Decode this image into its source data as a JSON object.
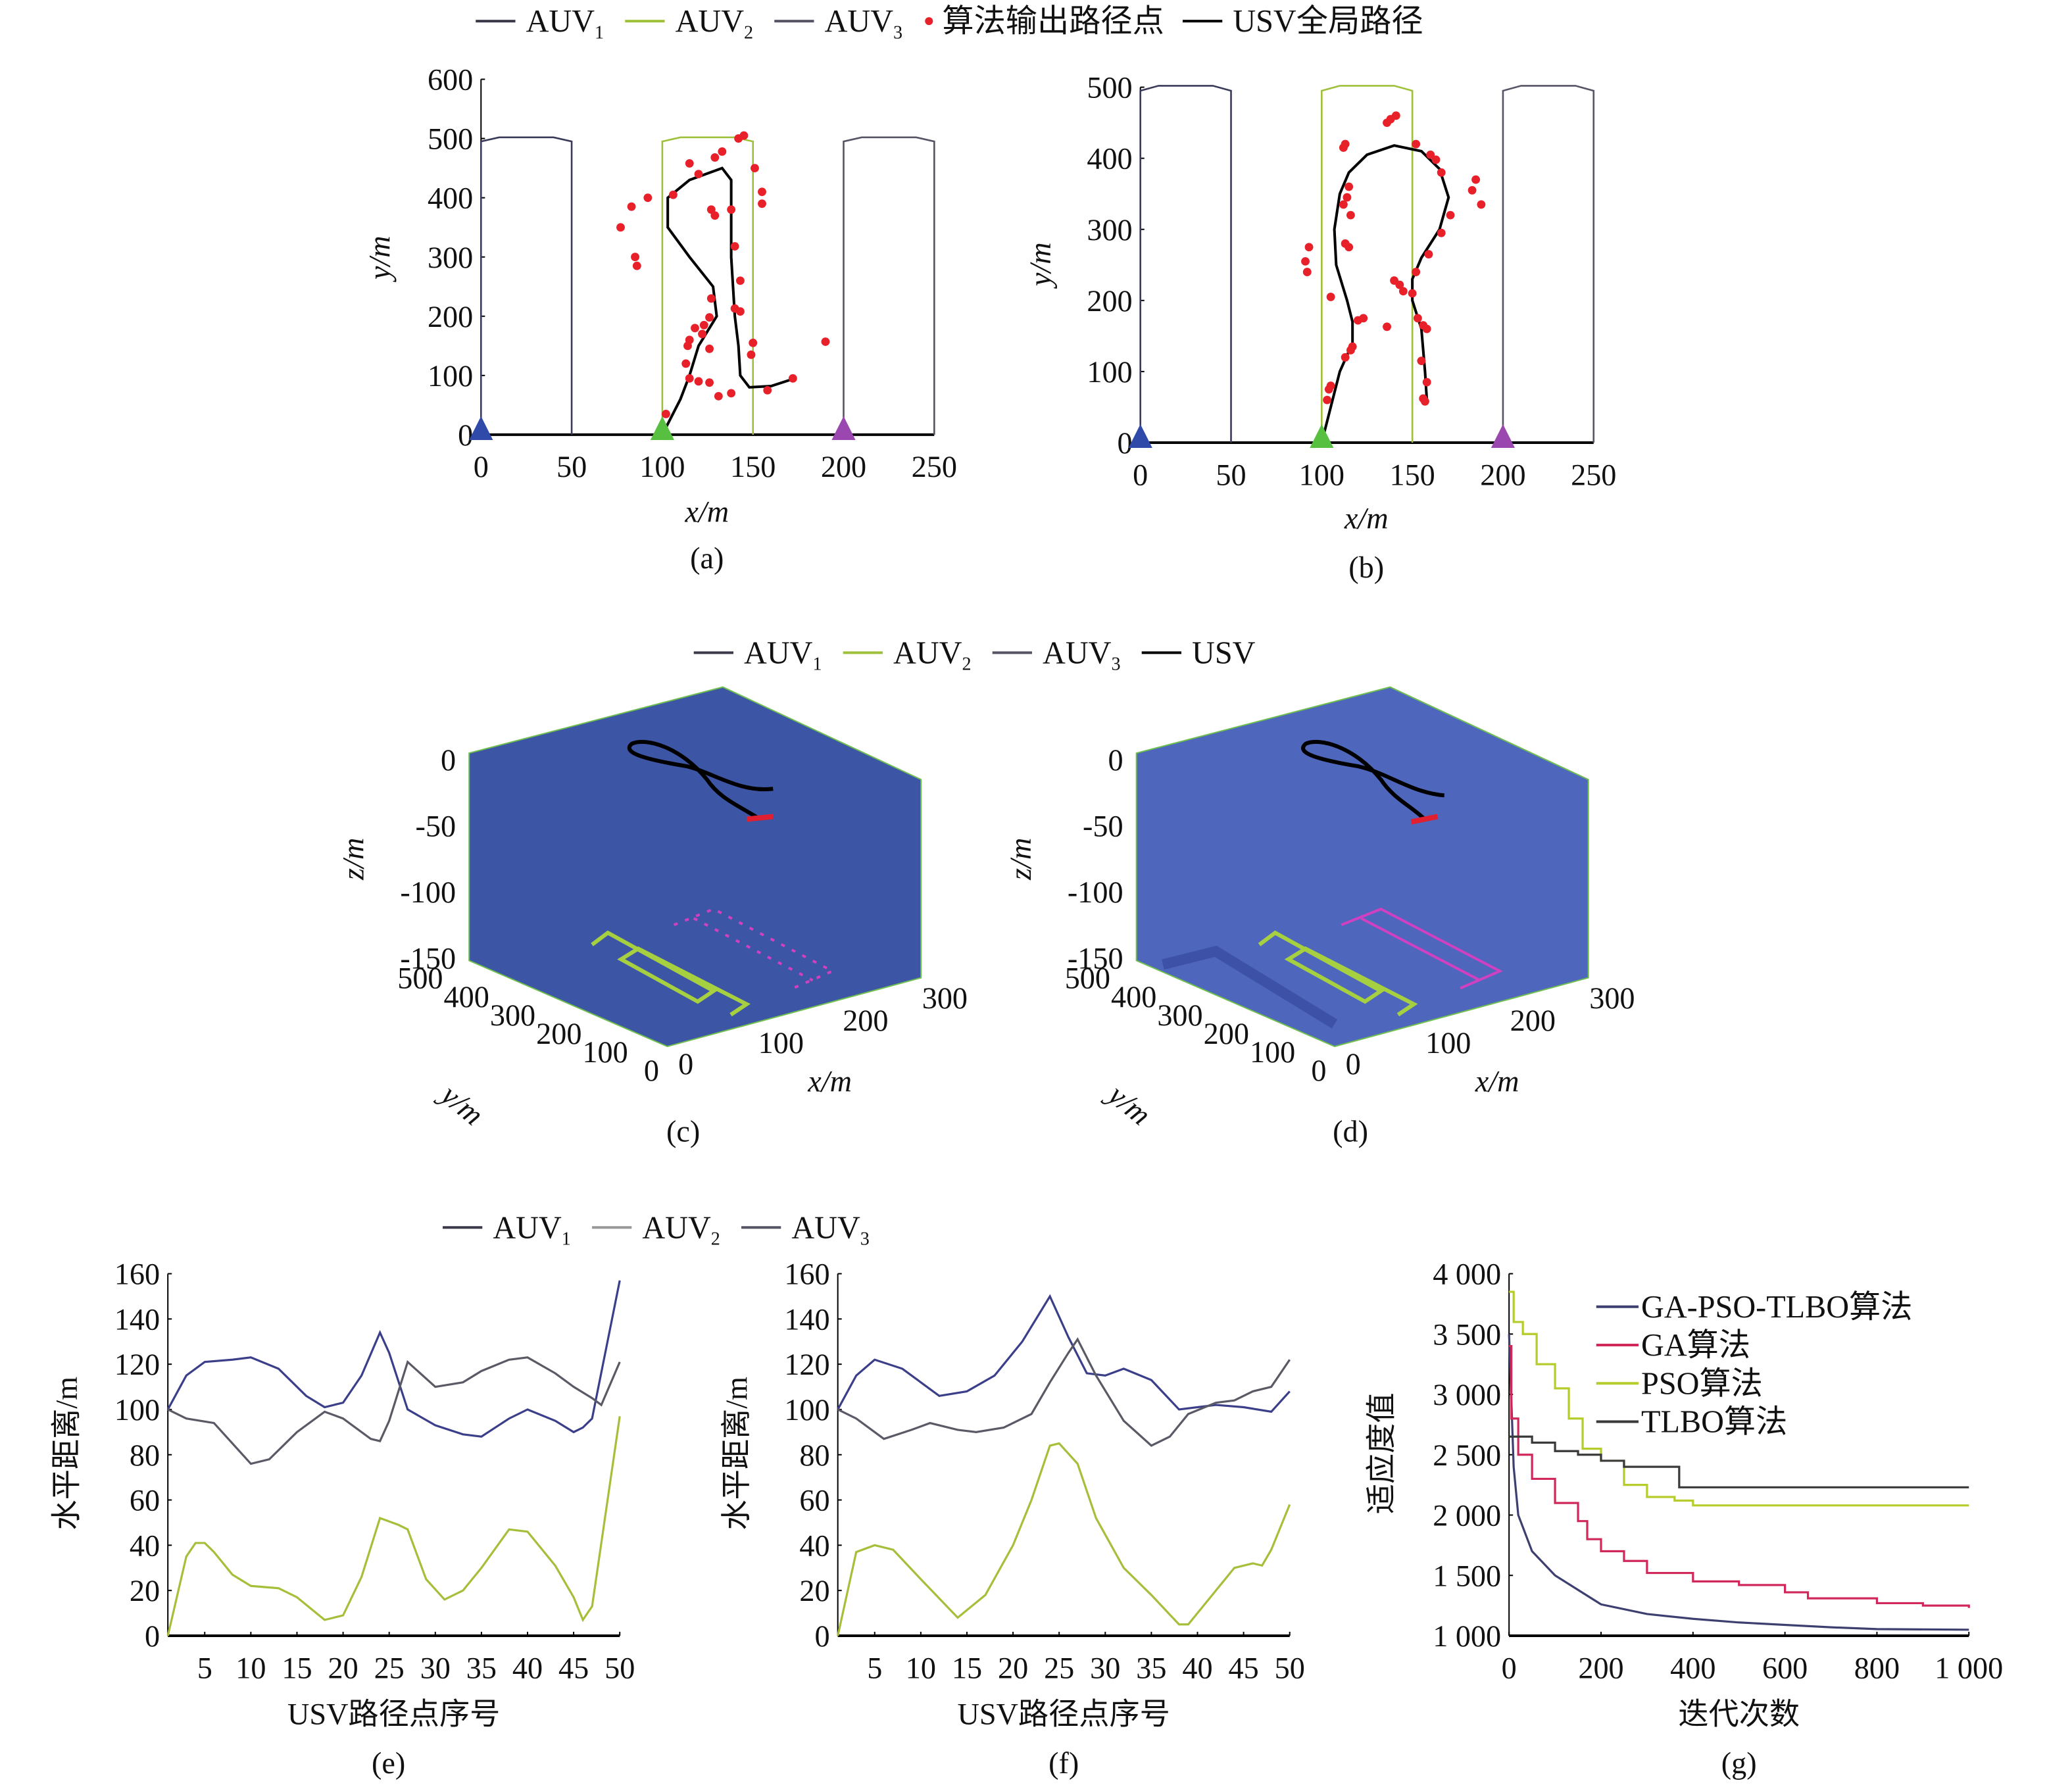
{
  "legends": {
    "top": [
      {
        "base": "AUV",
        "sub": "1",
        "color": "#3a3a4a",
        "kind": "line"
      },
      {
        "base": "AUV",
        "sub": "2",
        "color": "#9fc03a",
        "kind": "line"
      },
      {
        "base": "AUV",
        "sub": "3",
        "color": "#555566",
        "kind": "line"
      },
      {
        "base": "算法输出路径点",
        "sub": "",
        "color": "#e8202a",
        "kind": "dot"
      },
      {
        "base": "USV全局路径",
        "sub": "",
        "color": "#000000",
        "kind": "line"
      }
    ],
    "middle": [
      {
        "base": "AUV",
        "sub": "1",
        "color": "#3a3a4a",
        "kind": "line"
      },
      {
        "base": "AUV",
        "sub": "2",
        "color": "#9fc03a",
        "kind": "line"
      },
      {
        "base": "AUV",
        "sub": "3",
        "color": "#555566",
        "kind": "line"
      },
      {
        "base": "USV",
        "sub": "",
        "color": "#000000",
        "kind": "line"
      }
    ],
    "bottom": [
      {
        "base": "AUV",
        "sub": "1",
        "color": "#3a3a4a",
        "kind": "line"
      },
      {
        "base": "AUV",
        "sub": "2",
        "color": "#999999",
        "kind": "line"
      },
      {
        "base": "AUV",
        "sub": "3",
        "color": "#555566",
        "kind": "line"
      }
    ]
  },
  "chart_data": [
    {
      "id": "a",
      "type": "line",
      "caption": "(a)",
      "xlabel": "x/m",
      "ylabel": "y/m",
      "xlim": [
        0,
        250
      ],
      "ylim": [
        0,
        600
      ],
      "xticks": [
        0,
        50,
        100,
        150,
        200,
        250
      ],
      "yticks": [
        0,
        100,
        200,
        300,
        400,
        500,
        600
      ],
      "lanes": [
        {
          "name": "AUV1",
          "color": "#3a3a5a",
          "x": [
            0,
            0,
            10,
            40,
            50,
            50
          ],
          "y": [
            0,
            495,
            502,
            502,
            495,
            0
          ]
        },
        {
          "name": "AUV2",
          "color": "#9fc03a",
          "x": [
            100,
            100,
            110,
            140,
            150,
            150
          ],
          "y": [
            0,
            495,
            502,
            502,
            495,
            0
          ]
        },
        {
          "name": "AUV3",
          "color": "#555566",
          "x": [
            200,
            200,
            210,
            240,
            250,
            250
          ],
          "y": [
            0,
            495,
            502,
            502,
            495,
            0
          ]
        }
      ],
      "starts": [
        {
          "x": 0,
          "color": "#2f4aa8"
        },
        {
          "x": 100,
          "color": "#57c040"
        },
        {
          "x": 200,
          "color": "#9a47b0"
        }
      ],
      "usv_path": {
        "x": [
          100,
          110,
          115,
          120,
          130,
          128,
          115,
          103,
          103,
          115,
          133,
          138,
          138,
          140,
          142,
          143,
          148,
          160,
          173
        ],
        "y": [
          0,
          60,
          100,
          150,
          200,
          250,
          300,
          350,
          400,
          430,
          450,
          430,
          300,
          200,
          150,
          100,
          80,
          82,
          95
        ]
      },
      "points": {
        "x": [
          77,
          83,
          92,
          85,
          86,
          106,
          115,
          120,
          129,
          133,
          142,
          145,
          151,
          155,
          155,
          138,
          127,
          129,
          140,
          143,
          140,
          143,
          127,
          126,
          123,
          118,
          122,
          115,
          114,
          126,
          150,
          149,
          113,
          115,
          120,
          126,
          131,
          138,
          158,
          172,
          190,
          102
        ],
        "y": [
          350,
          385,
          400,
          300,
          285,
          405,
          458,
          440,
          468,
          478,
          500,
          505,
          450,
          410,
          390,
          380,
          380,
          370,
          318,
          260,
          213,
          208,
          230,
          198,
          185,
          180,
          170,
          160,
          150,
          145,
          155,
          135,
          120,
          95,
          90,
          88,
          65,
          70,
          75,
          95,
          157,
          35
        ]
      }
    },
    {
      "id": "b",
      "type": "line",
      "caption": "(b)",
      "xlabel": "x/m",
      "ylabel": "y/m",
      "xlim": [
        0,
        250
      ],
      "ylim": [
        0,
        500
      ],
      "xticks": [
        0,
        50,
        100,
        150,
        200,
        250
      ],
      "yticks": [
        0,
        100,
        200,
        300,
        400,
        500
      ],
      "lanes": [
        {
          "name": "AUV1",
          "color": "#3a3a5a",
          "x": [
            0,
            0,
            10,
            40,
            50,
            50
          ],
          "y": [
            0,
            495,
            502,
            502,
            495,
            0
          ]
        },
        {
          "name": "AUV2",
          "color": "#9fc03a",
          "x": [
            100,
            100,
            110,
            140,
            150,
            150
          ],
          "y": [
            0,
            495,
            502,
            502,
            495,
            0
          ]
        },
        {
          "name": "AUV3",
          "color": "#555566",
          "x": [
            200,
            200,
            210,
            240,
            250,
            250
          ],
          "y": [
            0,
            495,
            502,
            502,
            495,
            0
          ]
        }
      ],
      "starts": [
        {
          "x": 0,
          "color": "#2f4aa8"
        },
        {
          "x": 100,
          "color": "#57c040"
        },
        {
          "x": 200,
          "color": "#9a47b0"
        }
      ],
      "usv_path": {
        "x": [
          100,
          105,
          110,
          117,
          117,
          114,
          108,
          107,
          110,
          115,
          125,
          140,
          155,
          165,
          170,
          165,
          155,
          150,
          150,
          155,
          157,
          158
        ],
        "y": [
          0,
          50,
          100,
          140,
          170,
          200,
          250,
          300,
          350,
          380,
          405,
          418,
          410,
          385,
          345,
          300,
          260,
          230,
          200,
          160,
          100,
          60
        ]
      },
      "points": {
        "x": [
          93,
          91,
          92,
          105,
          113,
          112,
          115,
          114,
          112,
          116,
          113,
          115,
          123,
          120,
          117,
          116,
          113,
          105,
          104,
          103,
          136,
          138,
          141,
          152,
          160,
          163,
          166,
          185,
          183,
          188,
          171,
          166,
          159,
          152,
          140,
          143,
          145,
          150,
          136,
          153,
          156,
          158,
          155,
          158,
          156,
          157
        ],
        "y": [
          275,
          255,
          240,
          205,
          420,
          415,
          360,
          345,
          335,
          320,
          280,
          275,
          175,
          172,
          135,
          130,
          120,
          80,
          75,
          60,
          450,
          455,
          460,
          420,
          405,
          398,
          380,
          370,
          355,
          335,
          320,
          295,
          265,
          240,
          228,
          222,
          213,
          210,
          163,
          175,
          165,
          160,
          115,
          85,
          62,
          58
        ]
      }
    },
    {
      "id": "c",
      "type": "3d",
      "caption": "(c)",
      "xlabel": "x/m",
      "ylabel": "y/m",
      "zlabel": "z/m",
      "xticks": [
        0,
        100,
        200,
        300
      ],
      "yticks": [
        500,
        400,
        300,
        200,
        100,
        0
      ],
      "zticks": [
        0,
        -50,
        -100,
        -150
      ]
    },
    {
      "id": "d",
      "type": "3d",
      "caption": "(d)",
      "xlabel": "x/m",
      "ylabel": "y/m",
      "zlabel": "z/m",
      "xticks": [
        0,
        100,
        200,
        300
      ],
      "yticks": [
        500,
        400,
        300,
        200,
        100,
        0
      ],
      "zticks": [
        0,
        -50,
        -100,
        -150
      ]
    },
    {
      "id": "e",
      "type": "line",
      "caption": "(e)",
      "xlabel": "USV路径点序号",
      "ylabel": "水平距离/m",
      "xlim": [
        1,
        50
      ],
      "ylim": [
        0,
        160
      ],
      "xticks": [
        5,
        10,
        15,
        20,
        25,
        30,
        35,
        40,
        45,
        50
      ],
      "yticks": [
        0,
        20,
        40,
        60,
        80,
        100,
        120,
        140,
        160
      ],
      "series": [
        {
          "name": "AUV1",
          "color": "#3b3f8a",
          "x": [
            1,
            3,
            5,
            8,
            10,
            13,
            16,
            18,
            20,
            22,
            24,
            25,
            27,
            30,
            33,
            35,
            38,
            40,
            43,
            45,
            46,
            47,
            50
          ],
          "y": [
            100,
            115,
            121,
            122,
            123,
            118,
            106,
            101,
            103,
            115,
            134,
            125,
            100,
            93,
            89,
            88,
            96,
            100,
            95,
            90,
            92,
            96,
            157
          ]
        },
        {
          "name": "AUV3",
          "color": "#5a5a66",
          "x": [
            1,
            3,
            6,
            8,
            10,
            12,
            15,
            18,
            20,
            23,
            24,
            25,
            27,
            30,
            33,
            35,
            38,
            40,
            43,
            45,
            47,
            48,
            50
          ],
          "y": [
            100,
            96,
            94,
            85,
            76,
            78,
            90,
            99,
            96,
            87,
            86,
            95,
            121,
            110,
            112,
            117,
            122,
            123,
            116,
            110,
            105,
            102,
            121
          ]
        },
        {
          "name": "AUV2",
          "color": "#a6bf3a",
          "x": [
            1,
            3,
            4,
            5,
            6,
            8,
            10,
            13,
            15,
            18,
            20,
            22,
            24,
            26,
            27,
            29,
            31,
            33,
            35,
            38,
            40,
            43,
            45,
            46,
            47,
            50
          ],
          "y": [
            0,
            35,
            41,
            41,
            37,
            27,
            22,
            21,
            17,
            7,
            9,
            26,
            52,
            49,
            47,
            25,
            16,
            20,
            30,
            47,
            46,
            31,
            17,
            7,
            13,
            97
          ]
        }
      ]
    },
    {
      "id": "f",
      "type": "line",
      "caption": "(f)",
      "xlabel": "USV路径点序号",
      "ylabel": "水平距离/m",
      "xlim": [
        1,
        50
      ],
      "ylim": [
        0,
        160
      ],
      "xticks": [
        5,
        10,
        15,
        20,
        25,
        30,
        35,
        40,
        45,
        50
      ],
      "yticks": [
        0,
        20,
        40,
        60,
        80,
        100,
        120,
        140,
        160
      ],
      "series": [
        {
          "name": "AUV1",
          "color": "#3b3f8a",
          "x": [
            1,
            3,
            5,
            8,
            12,
            15,
            18,
            21,
            24,
            26,
            28,
            30,
            32,
            35,
            38,
            40,
            42,
            45,
            48,
            50
          ],
          "y": [
            100,
            115,
            122,
            118,
            106,
            108,
            115,
            130,
            150,
            132,
            116,
            115,
            118,
            113,
            100,
            101,
            102,
            101,
            99,
            108
          ]
        },
        {
          "name": "AUV3",
          "color": "#5a5a66",
          "x": [
            1,
            3,
            6,
            9,
            11,
            14,
            16,
            19,
            22,
            24,
            26,
            27,
            29,
            32,
            35,
            37,
            39,
            42,
            44,
            46,
            48,
            50
          ],
          "y": [
            100,
            96,
            87,
            91,
            94,
            91,
            90,
            92,
            98,
            112,
            125,
            131,
            115,
            95,
            84,
            88,
            98,
            103,
            104,
            108,
            110,
            122
          ]
        },
        {
          "name": "AUV2",
          "color": "#a6bf3a",
          "x": [
            1,
            3,
            5,
            7,
            10,
            14,
            17,
            20,
            22,
            24,
            25,
            27,
            29,
            32,
            35,
            38,
            39,
            41,
            44,
            46,
            47,
            48,
            50
          ],
          "y": [
            0,
            37,
            40,
            38,
            25,
            8,
            18,
            40,
            60,
            84,
            85,
            76,
            52,
            30,
            18,
            5,
            5,
            15,
            30,
            32,
            31,
            38,
            58
          ]
        }
      ]
    },
    {
      "id": "g",
      "type": "line",
      "caption": "(g)",
      "xlabel": "迭代次数",
      "ylabel": "适应度值",
      "xlim": [
        0,
        1000
      ],
      "ylim": [
        1000,
        4000
      ],
      "xticks": [
        0,
        200,
        400,
        600,
        800,
        1000
      ],
      "xticklabels": [
        "0",
        "200",
        "400",
        "600",
        "800",
        "1 000"
      ],
      "yticks": [
        1000,
        1500,
        2000,
        2500,
        3000,
        3500,
        4000
      ],
      "yticklabels": [
        "1 000",
        "1 500",
        "2 000",
        "2 500",
        "3 000",
        "3 500",
        "4 000"
      ],
      "legend_placement": "top-right",
      "series": [
        {
          "name": "GA-PSO-TLBO算法",
          "color": "#3d3f70",
          "step": false,
          "x": [
            0,
            10,
            20,
            50,
            100,
            150,
            200,
            300,
            400,
            500,
            600,
            700,
            800,
            1000
          ],
          "y": [
            3500,
            2400,
            2000,
            1700,
            1500,
            1380,
            1260,
            1180,
            1140,
            1110,
            1090,
            1070,
            1055,
            1050
          ]
        },
        {
          "name": "GA算法",
          "color": "#d0285a",
          "step": true,
          "x": [
            0,
            5,
            20,
            50,
            100,
            150,
            170,
            200,
            250,
            300,
            400,
            500,
            600,
            650,
            800,
            900,
            1000
          ],
          "y": [
            3400,
            2800,
            2500,
            2300,
            2100,
            1950,
            1800,
            1700,
            1620,
            1520,
            1450,
            1420,
            1360,
            1310,
            1270,
            1250,
            1230
          ]
        },
        {
          "name": "PSO算法",
          "color": "#b5cc2a",
          "step": true,
          "x": [
            0,
            10,
            30,
            60,
            100,
            130,
            160,
            200,
            250,
            300,
            360,
            400,
            1000
          ],
          "y": [
            3850,
            3600,
            3500,
            3250,
            3050,
            2800,
            2550,
            2450,
            2250,
            2150,
            2120,
            2080,
            2080
          ]
        },
        {
          "name": "TLBO算法",
          "color": "#3a3a3a",
          "step": true,
          "x": [
            0,
            50,
            100,
            150,
            200,
            250,
            370,
            1000
          ],
          "y": [
            2650,
            2600,
            2530,
            2500,
            2450,
            2400,
            2230,
            2230
          ]
        }
      ]
    }
  ]
}
